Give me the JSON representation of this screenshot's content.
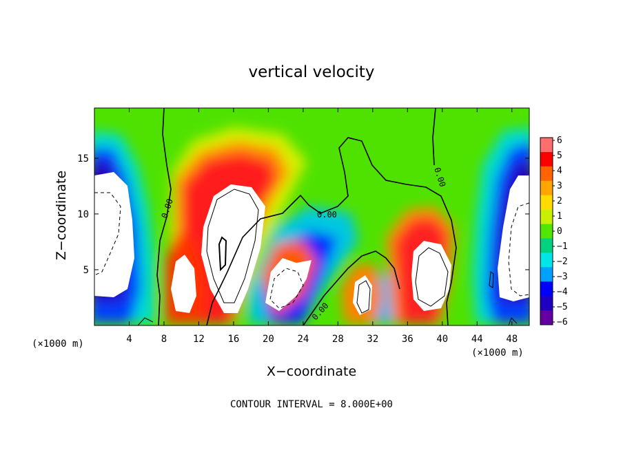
{
  "chart_data": {
    "type": "heatmap",
    "title": "vertical velocity",
    "xlabel": "X−coordinate",
    "ylabel": "Z−coordinate",
    "x_unit": "(×1000 m)",
    "z_unit": "(×1000 m)",
    "xlim": [
      0,
      50
    ],
    "ylim": [
      0,
      19.5
    ],
    "x_ticks": [
      "4",
      "8",
      "12",
      "16",
      "20",
      "24",
      "28",
      "32",
      "36",
      "40",
      "44",
      "48"
    ],
    "x_tick_values": [
      4,
      8,
      12,
      16,
      20,
      24,
      28,
      32,
      36,
      40,
      44,
      48
    ],
    "y_ticks": [
      "5",
      "10",
      "15"
    ],
    "y_tick_values": [
      5,
      10,
      15
    ],
    "colorbar": {
      "labels": [
        "6",
        "5",
        "4",
        "3",
        "2",
        "1",
        "0",
        "−1",
        "−2",
        "−3",
        "−4",
        "−5",
        "−6"
      ],
      "values": [
        6,
        5,
        4,
        3,
        2,
        1,
        0,
        -1,
        -2,
        -3,
        -4,
        -5,
        -6
      ],
      "colors": [
        "#ff6e6e",
        "#ff0000",
        "#ff6400",
        "#ffa500",
        "#ffdc00",
        "#c8f000",
        "#50e600",
        "#00d280",
        "#00e6e6",
        "#00a0ff",
        "#0000ff",
        "#2000c0",
        "#6400a0"
      ],
      "out_of_range_color": "#ffffff"
    },
    "contour_label": "0.00",
    "contour_interval_text": "CONTOUR INTERVAL = 8.000E+00",
    "features": [
      {
        "kind": "updraft",
        "x": 15,
        "z": 10,
        "w": 12
      },
      {
        "kind": "updraft",
        "x": 10.5,
        "z": 4.5,
        "w": 11
      },
      {
        "kind": "updraft",
        "x": 22.5,
        "z": 4.5,
        "w": 10
      },
      {
        "kind": "updraft",
        "x": 31,
        "z": 3,
        "w": 9
      },
      {
        "kind": "updraft",
        "x": 38,
        "z": 5.5,
        "w": 10
      },
      {
        "kind": "downdraft",
        "x": 2,
        "z": 9,
        "w": -12
      },
      {
        "kind": "downdraft",
        "x": 48,
        "z": 9,
        "w": -12
      }
    ]
  }
}
